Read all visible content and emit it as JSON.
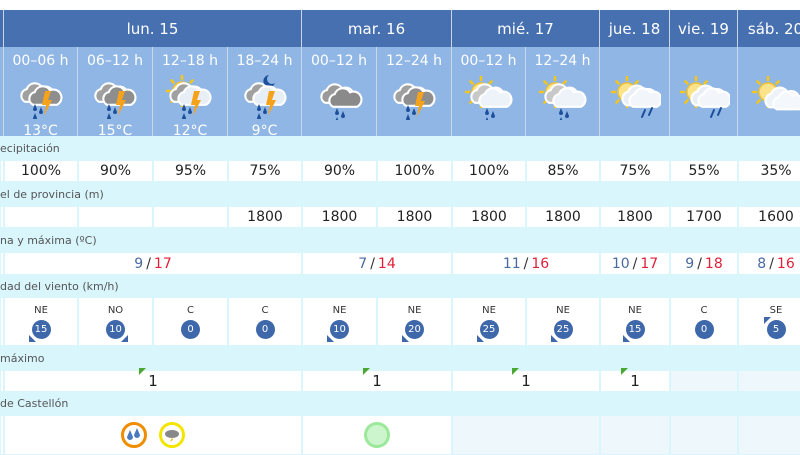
{
  "colors": {
    "header": "#4770b0",
    "period": "#8fb6e4",
    "background": "#d9f6fd",
    "temp_min": "#4a6aa0",
    "temp_max": "#e0203a",
    "wind_badge": "#3f68aa",
    "uv_flag": "#4aa832",
    "warn_orange": "#f08c00",
    "warn_yellow": "#f2e600",
    "warn_green": "#9be89b"
  },
  "days": [
    {
      "label": "lun. 15",
      "span": 4
    },
    {
      "label": "mar. 16",
      "span": 2
    },
    {
      "label": "mié. 17",
      "span": 2
    },
    {
      "label": "jue. 18",
      "span": 1
    },
    {
      "label": "vie. 19",
      "span": 1
    },
    {
      "label": "sáb. 20",
      "span": 1
    }
  ],
  "periods": [
    {
      "label": "00–06 h",
      "icon": "cloud-storm-rain-icon",
      "temp": "13°C"
    },
    {
      "label": "06–12 h",
      "icon": "cloud-storm-rain-icon",
      "temp": "15°C"
    },
    {
      "label": "12–18 h",
      "icon": "sun-cloud-storm-rain-icon",
      "temp": "12°C"
    },
    {
      "label": "18–24 h",
      "icon": "moon-cloud-storm-rain-icon",
      "temp": "9°C"
    },
    {
      "label": "00–12 h",
      "icon": "cloud-rain-icon",
      "temp": ""
    },
    {
      "label": "12–24 h",
      "icon": "cloud-storm-rain-icon",
      "temp": ""
    },
    {
      "label": "00–12 h",
      "icon": "sun-cloud-rain-icon",
      "temp": ""
    },
    {
      "label": "12–24 h",
      "icon": "sun-cloud-rain-icon",
      "temp": ""
    },
    {
      "label": "",
      "icon": "sun-cloud-light-rain-icon",
      "temp": ""
    },
    {
      "label": "",
      "icon": "sun-cloud-light-rain-icon",
      "temp": ""
    },
    {
      "label": "",
      "icon": "sun-cloud-icon",
      "temp": ""
    }
  ],
  "labels": {
    "precip": "ecipitación",
    "snow": "el de provincia (m)",
    "temp": "na y máxima (ºC)",
    "wind": "dad del viento (km/h)",
    "uv": "máximo",
    "warnings": "de Castellón"
  },
  "precip": [
    "100%",
    "90%",
    "95%",
    "75%",
    "90%",
    "100%",
    "100%",
    "85%",
    "75%",
    "55%",
    "35%"
  ],
  "snow": [
    "",
    "",
    "",
    "1800",
    "1800",
    "1800",
    "1800",
    "1800",
    "1800",
    "1700",
    "1600"
  ],
  "temps": [
    {
      "min": "9",
      "max": "17",
      "span": 4
    },
    {
      "min": "7",
      "max": "14",
      "span": 2
    },
    {
      "min": "11",
      "max": "16",
      "span": 2
    },
    {
      "min": "10",
      "max": "17",
      "span": 1
    },
    {
      "min": "9",
      "max": "18",
      "span": 1
    },
    {
      "min": "8",
      "max": "16",
      "span": 1
    }
  ],
  "wind": [
    {
      "dir": "NE",
      "speed": "15",
      "arrow": "bottom-left"
    },
    {
      "dir": "NO",
      "speed": "10",
      "arrow": "bottom-right"
    },
    {
      "dir": "C",
      "speed": "0",
      "arrow": ""
    },
    {
      "dir": "C",
      "speed": "0",
      "arrow": ""
    },
    {
      "dir": "NE",
      "speed": "10",
      "arrow": "bottom-left"
    },
    {
      "dir": "NE",
      "speed": "20",
      "arrow": "bottom-left"
    },
    {
      "dir": "NE",
      "speed": "25",
      "arrow": "bottom-left"
    },
    {
      "dir": "NE",
      "speed": "25",
      "arrow": "bottom-left"
    },
    {
      "dir": "NE",
      "speed": "15",
      "arrow": "bottom-left"
    },
    {
      "dir": "C",
      "speed": "0",
      "arrow": ""
    },
    {
      "dir": "SE",
      "speed": "5",
      "arrow": "top-left"
    }
  ],
  "uv": [
    {
      "value": "1",
      "span": 4
    },
    {
      "value": "1",
      "span": 2
    },
    {
      "value": "1",
      "span": 2
    },
    {
      "value": "1",
      "span": 1
    },
    {
      "value": "",
      "span": 1
    },
    {
      "value": "",
      "span": 1
    }
  ],
  "warnings": [
    {
      "span": 4,
      "items": [
        {
          "level": "orange",
          "icon": "rain-drops-icon"
        },
        {
          "level": "yellow",
          "icon": "storm-cloud-icon"
        }
      ]
    },
    {
      "span": 2,
      "items": [
        {
          "level": "green",
          "icon": ""
        }
      ]
    },
    {
      "span": 2,
      "items": []
    },
    {
      "span": 1,
      "items": []
    },
    {
      "span": 1,
      "items": []
    },
    {
      "span": 1,
      "items": []
    }
  ]
}
